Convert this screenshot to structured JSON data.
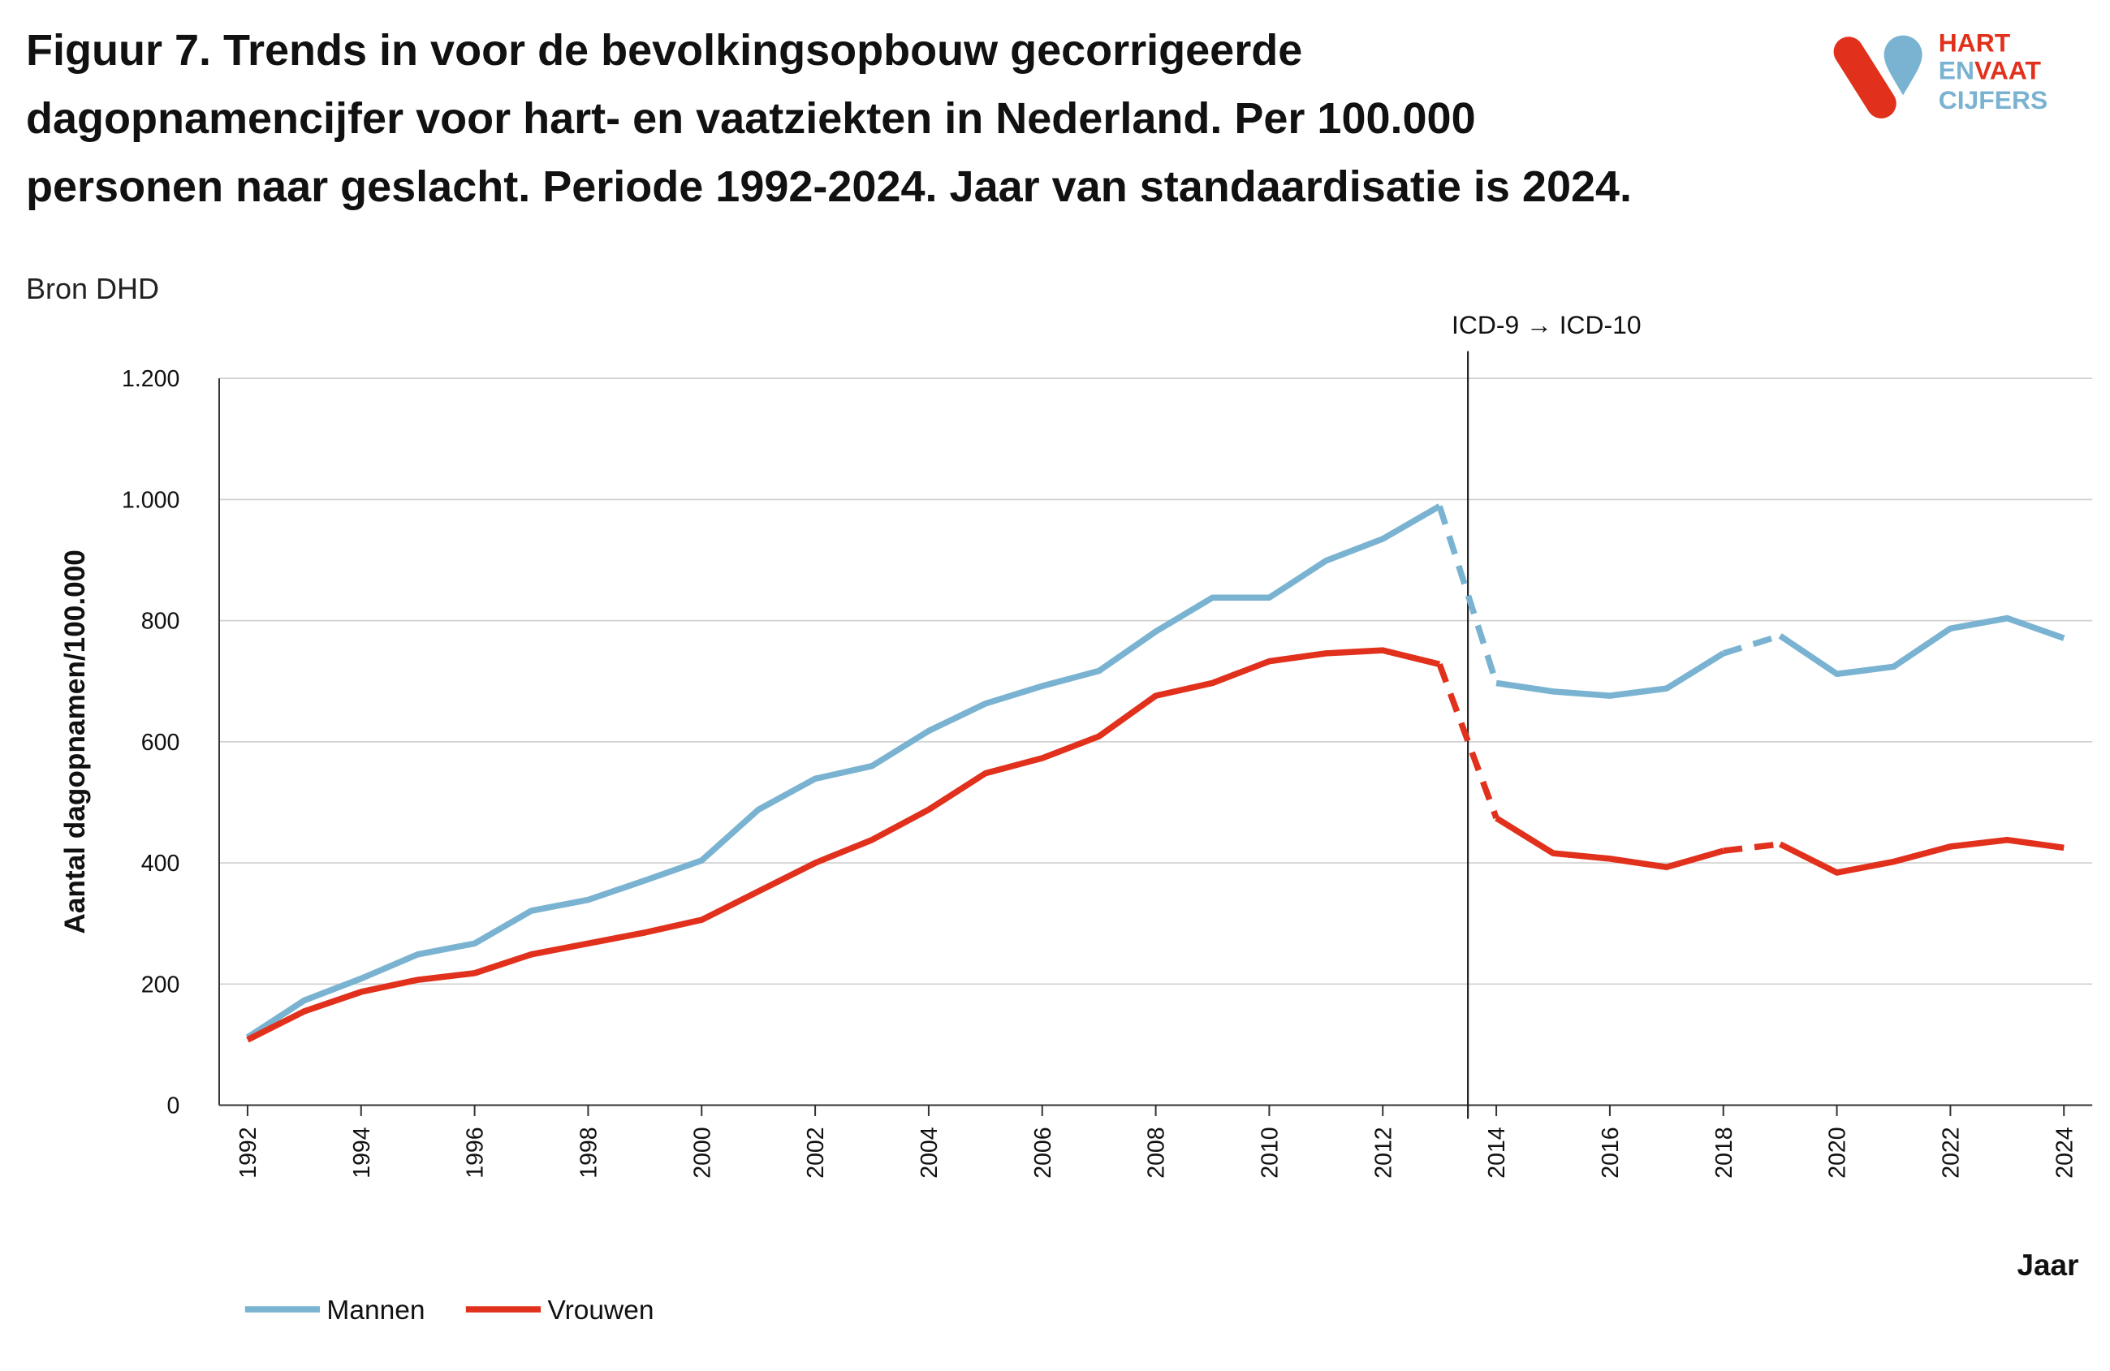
{
  "chart_data": {
    "type": "line",
    "title": "Figuur 7. Trends in voor de bevolkingsopbouw gecorrigeerde dagopnamencijfer voor hart- en vaatziekten in Nederland. Per 100.000 personen naar geslacht. Periode 1992-2024. Jaar van standaardisatie is 2024.",
    "subtitle": "Bron DHD",
    "x_label": "Jaar",
    "y_label": "Aantal dagopnamen/100.000",
    "x": [
      1992,
      1993,
      1994,
      1995,
      1996,
      1997,
      1998,
      1999,
      2000,
      2001,
      2002,
      2003,
      2004,
      2005,
      2006,
      2007,
      2008,
      2009,
      2010,
      2011,
      2012,
      2013,
      2014,
      2015,
      2016,
      2017,
      2018,
      2019,
      2020,
      2021,
      2022,
      2023,
      2024
    ],
    "series": [
      {
        "name": "Mannen",
        "color": "#7ab3d1",
        "values": [
          112,
          173,
          209,
          249,
          267,
          321,
          339,
          371,
          404,
          488,
          539,
          560,
          618,
          663,
          692,
          717,
          782,
          838,
          838,
          899,
          935,
          989,
          697,
          683,
          676,
          688,
          746,
          775,
          712,
          724,
          787,
          804,
          771
        ]
      },
      {
        "name": "Vrouwen",
        "color": "#e1301b",
        "values": [
          108,
          155,
          187,
          207,
          218,
          249,
          267,
          285,
          306,
          353,
          400,
          438,
          488,
          548,
          573,
          609,
          676,
          697,
          733,
          746,
          751,
          728,
          474,
          416,
          407,
          393,
          420,
          431,
          384,
          402,
          427,
          438,
          425
        ]
      }
    ],
    "dashed_from_x": [
      2013,
      2018
    ],
    "xlim": [
      1991.5,
      2024.5
    ],
    "xticks": [
      1992,
      1994,
      1996,
      1998,
      2000,
      2002,
      2004,
      2006,
      2008,
      2010,
      2012,
      2014,
      2016,
      2018,
      2020,
      2022,
      2024
    ],
    "ylim": [
      0,
      1200
    ],
    "yticks": [
      0,
      200,
      400,
      600,
      800,
      {
        "value": 1000,
        "label": "1.000"
      },
      {
        "value": 1200,
        "label": "1.200"
      }
    ],
    "grid": true,
    "legend": "bottom-left",
    "annotation": {
      "text": "ICD-9 → ICD-10",
      "x": 2013.5
    }
  },
  "logo": {
    "line1": "HART",
    "line2a": "EN",
    "line2b": "VAAT",
    "line3": "CIJFERS"
  }
}
